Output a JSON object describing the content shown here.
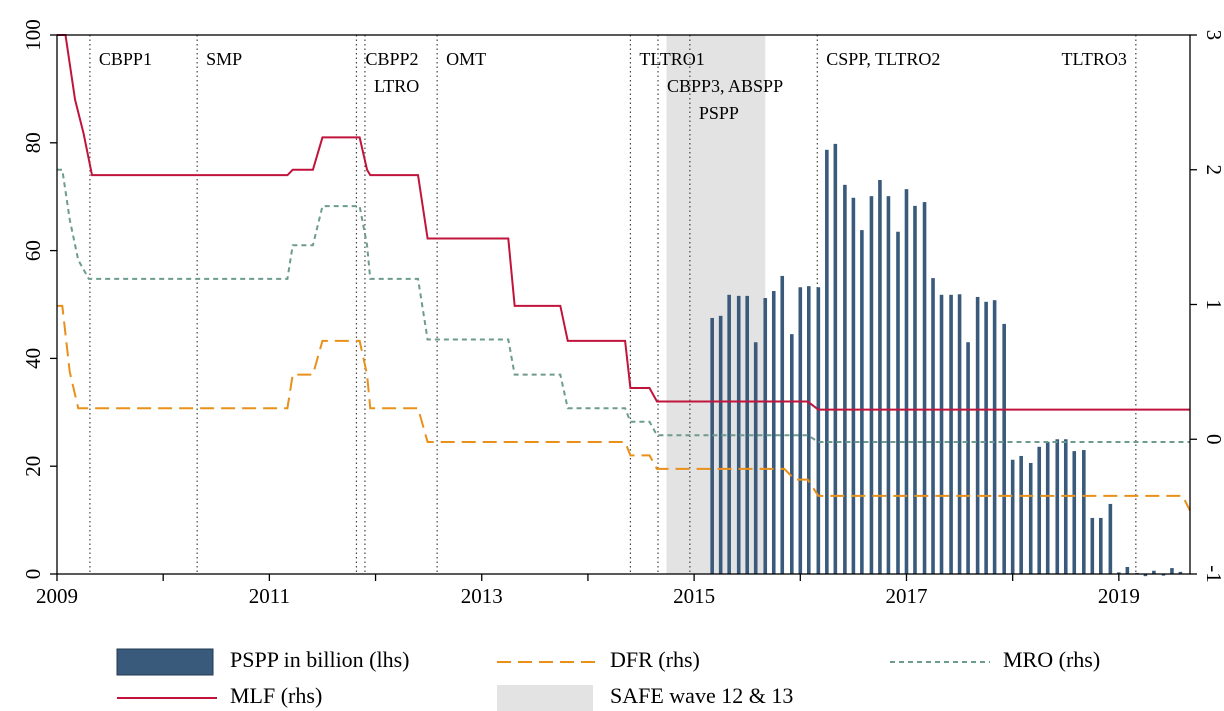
{
  "chart_data": {
    "type": "combo",
    "xlim": [
      2009,
      2019.67
    ],
    "xticks": [
      2009,
      2011,
      2013,
      2015,
      2017,
      2019
    ],
    "xminorticks": [
      2010,
      2012,
      2014,
      2016,
      2018
    ],
    "ylim": [
      0,
      100
    ],
    "yticks": [
      0,
      20,
      40,
      60,
      80,
      100
    ],
    "y2lim": [
      -1,
      3
    ],
    "y2ticks": [
      -1,
      0,
      1,
      2,
      3
    ],
    "legend": "bottom",
    "shaded_region": {
      "name": "SAFE wave 12 & 13",
      "x": [
        2014.74,
        2015.67
      ],
      "color": "#e3e3e3"
    },
    "events": [
      {
        "label": "CBPP1",
        "x": 2009.31
      },
      {
        "label": "SMP",
        "x": 2010.32
      },
      {
        "label": "CBPP2",
        "x": 2011.82
      },
      {
        "label": "LTRO",
        "x": 2011.9
      },
      {
        "label": "OMT",
        "x": 2012.58
      },
      {
        "label": "TLTRO1",
        "x": 2014.4
      },
      {
        "label": "CBPP3, ABSPP",
        "x": 2014.66
      },
      {
        "label": "PSPP",
        "x": 2014.96
      },
      {
        "label": "CSPP, TLTRO2",
        "x": 2016.16
      },
      {
        "label": "TLTRO3",
        "x": 2019.16
      }
    ],
    "series": [
      {
        "name": "PSPP in billion (lhs)",
        "type": "bar",
        "color": "#3a5a7c",
        "x": [
          2015.17,
          2015.25,
          2015.33,
          2015.42,
          2015.5,
          2015.58,
          2015.67,
          2015.75,
          2015.83,
          2015.92,
          2016.0,
          2016.08,
          2016.17,
          2016.25,
          2016.33,
          2016.42,
          2016.5,
          2016.58,
          2016.67,
          2016.75,
          2016.83,
          2016.92,
          2017.0,
          2017.08,
          2017.17,
          2017.25,
          2017.33,
          2017.42,
          2017.5,
          2017.58,
          2017.67,
          2017.75,
          2017.83,
          2017.92,
          2018.0,
          2018.08,
          2018.17,
          2018.25,
          2018.33,
          2018.42,
          2018.5,
          2018.58,
          2018.67,
          2018.75,
          2018.83,
          2018.92,
          2019.0,
          2019.08,
          2019.17,
          2019.25,
          2019.33,
          2019.42,
          2019.5,
          2019.58
        ],
        "values": [
          47.5,
          47.9,
          51.8,
          51.6,
          51.6,
          43,
          51.2,
          52.5,
          55.3,
          44.5,
          53.2,
          53.4,
          53.2,
          78.7,
          79.8,
          72.2,
          69.8,
          63.8,
          70.1,
          73.1,
          70.1,
          63.5,
          71.4,
          68.3,
          69,
          54.9,
          51.8,
          51.8,
          51.9,
          43,
          51.4,
          50.5,
          50.8,
          46.4,
          21.2,
          21.9,
          20.6,
          23.6,
          24.5,
          25,
          25,
          22.8,
          23,
          10.4,
          10.4,
          13,
          0.3,
          1.3,
          0.2,
          -0.4,
          0.6,
          -0.3,
          1.1,
          0.4
        ]
      },
      {
        "name": "DFR (rhs)",
        "type": "line",
        "style": "dashed",
        "axis": "y2",
        "color": "#e8901a",
        "x": [
          2009.0,
          2009.05,
          2009.12,
          2009.2,
          2011.17,
          2011.22,
          2011.41,
          2011.5,
          2011.85,
          2011.92,
          2011.95,
          2012.4,
          2012.49,
          2014.35,
          2014.4,
          2014.58,
          2014.65,
          2015.85,
          2015.95,
          2016.07,
          2016.17,
          2019.6,
          2019.67
        ],
        "values": [
          0.99,
          0.99,
          0.5,
          0.23,
          0.23,
          0.48,
          0.48,
          0.73,
          0.73,
          0.48,
          0.23,
          0.23,
          -0.02,
          -0.02,
          -0.12,
          -0.12,
          -0.22,
          -0.22,
          -0.3,
          -0.3,
          -0.42,
          -0.42,
          -0.53
        ]
      },
      {
        "name": "MRO (rhs)",
        "type": "line",
        "style": "dotted",
        "axis": "y2",
        "color": "#6e9b8f",
        "x": [
          2009.0,
          2009.05,
          2009.12,
          2009.2,
          2009.3,
          2011.17,
          2011.22,
          2011.41,
          2011.5,
          2011.85,
          2011.92,
          2011.95,
          2012.4,
          2012.49,
          2013.25,
          2013.31,
          2013.74,
          2013.81,
          2014.35,
          2014.4,
          2014.58,
          2014.65,
          2016.07,
          2016.17,
          2019.67
        ],
        "values": [
          2.0,
          2.0,
          1.63,
          1.33,
          1.19,
          1.19,
          1.44,
          1.44,
          1.73,
          1.73,
          1.44,
          1.19,
          1.19,
          0.74,
          0.74,
          0.48,
          0.48,
          0.23,
          0.23,
          0.13,
          0.13,
          0.03,
          0.03,
          -0.02,
          -0.02
        ]
      },
      {
        "name": "MLF (rhs)",
        "type": "line",
        "style": "solid",
        "axis": "y2",
        "color": "#c0143c",
        "x": [
          2009.0,
          2009.08,
          2009.17,
          2009.25,
          2009.33,
          2011.17,
          2011.22,
          2011.41,
          2011.5,
          2011.85,
          2011.92,
          2011.95,
          2012.4,
          2012.49,
          2013.25,
          2013.31,
          2013.74,
          2013.81,
          2014.35,
          2014.4,
          2014.58,
          2014.65,
          2016.07,
          2016.17,
          2019.67
        ],
        "values": [
          3.0,
          3.0,
          2.52,
          2.27,
          1.96,
          1.96,
          2.0,
          2.0,
          2.24,
          2.24,
          2.0,
          1.96,
          1.96,
          1.49,
          1.49,
          0.99,
          0.99,
          0.73,
          0.73,
          0.38,
          0.38,
          0.28,
          0.28,
          0.22,
          0.22
        ]
      }
    ]
  }
}
